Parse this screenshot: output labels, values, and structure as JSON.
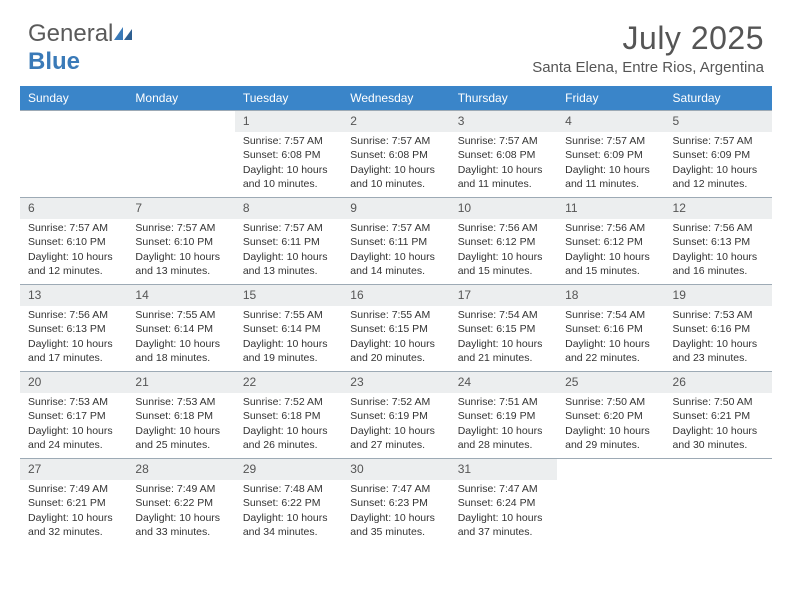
{
  "logo": {
    "part1": "General",
    "part2": "Blue"
  },
  "title": "July 2025",
  "location": "Santa Elena, Entre Rios, Argentina",
  "colors": {
    "header_bg": "#3a85c9",
    "header_text": "#ffffff",
    "daynum_bg": "#eceeef",
    "border": "#9daab5",
    "body_text": "#333333",
    "title_text": "#555555",
    "logo_gray": "#5a5a5a",
    "logo_blue": "#3a7ab8",
    "page_bg": "#ffffff"
  },
  "fonts": {
    "title_size": 32,
    "location_size": 15,
    "dayheader_size": 12,
    "body_size": 10.5
  },
  "day_names": [
    "Sunday",
    "Monday",
    "Tuesday",
    "Wednesday",
    "Thursday",
    "Friday",
    "Saturday"
  ],
  "weeks": [
    [
      null,
      null,
      {
        "n": "1",
        "sr": "7:57 AM",
        "ss": "6:08 PM",
        "dl": "10 hours and 10 minutes."
      },
      {
        "n": "2",
        "sr": "7:57 AM",
        "ss": "6:08 PM",
        "dl": "10 hours and 10 minutes."
      },
      {
        "n": "3",
        "sr": "7:57 AM",
        "ss": "6:08 PM",
        "dl": "10 hours and 11 minutes."
      },
      {
        "n": "4",
        "sr": "7:57 AM",
        "ss": "6:09 PM",
        "dl": "10 hours and 11 minutes."
      },
      {
        "n": "5",
        "sr": "7:57 AM",
        "ss": "6:09 PM",
        "dl": "10 hours and 12 minutes."
      }
    ],
    [
      {
        "n": "6",
        "sr": "7:57 AM",
        "ss": "6:10 PM",
        "dl": "10 hours and 12 minutes."
      },
      {
        "n": "7",
        "sr": "7:57 AM",
        "ss": "6:10 PM",
        "dl": "10 hours and 13 minutes."
      },
      {
        "n": "8",
        "sr": "7:57 AM",
        "ss": "6:11 PM",
        "dl": "10 hours and 13 minutes."
      },
      {
        "n": "9",
        "sr": "7:57 AM",
        "ss": "6:11 PM",
        "dl": "10 hours and 14 minutes."
      },
      {
        "n": "10",
        "sr": "7:56 AM",
        "ss": "6:12 PM",
        "dl": "10 hours and 15 minutes."
      },
      {
        "n": "11",
        "sr": "7:56 AM",
        "ss": "6:12 PM",
        "dl": "10 hours and 15 minutes."
      },
      {
        "n": "12",
        "sr": "7:56 AM",
        "ss": "6:13 PM",
        "dl": "10 hours and 16 minutes."
      }
    ],
    [
      {
        "n": "13",
        "sr": "7:56 AM",
        "ss": "6:13 PM",
        "dl": "10 hours and 17 minutes."
      },
      {
        "n": "14",
        "sr": "7:55 AM",
        "ss": "6:14 PM",
        "dl": "10 hours and 18 minutes."
      },
      {
        "n": "15",
        "sr": "7:55 AM",
        "ss": "6:14 PM",
        "dl": "10 hours and 19 minutes."
      },
      {
        "n": "16",
        "sr": "7:55 AM",
        "ss": "6:15 PM",
        "dl": "10 hours and 20 minutes."
      },
      {
        "n": "17",
        "sr": "7:54 AM",
        "ss": "6:15 PM",
        "dl": "10 hours and 21 minutes."
      },
      {
        "n": "18",
        "sr": "7:54 AM",
        "ss": "6:16 PM",
        "dl": "10 hours and 22 minutes."
      },
      {
        "n": "19",
        "sr": "7:53 AM",
        "ss": "6:16 PM",
        "dl": "10 hours and 23 minutes."
      }
    ],
    [
      {
        "n": "20",
        "sr": "7:53 AM",
        "ss": "6:17 PM",
        "dl": "10 hours and 24 minutes."
      },
      {
        "n": "21",
        "sr": "7:53 AM",
        "ss": "6:18 PM",
        "dl": "10 hours and 25 minutes."
      },
      {
        "n": "22",
        "sr": "7:52 AM",
        "ss": "6:18 PM",
        "dl": "10 hours and 26 minutes."
      },
      {
        "n": "23",
        "sr": "7:52 AM",
        "ss": "6:19 PM",
        "dl": "10 hours and 27 minutes."
      },
      {
        "n": "24",
        "sr": "7:51 AM",
        "ss": "6:19 PM",
        "dl": "10 hours and 28 minutes."
      },
      {
        "n": "25",
        "sr": "7:50 AM",
        "ss": "6:20 PM",
        "dl": "10 hours and 29 minutes."
      },
      {
        "n": "26",
        "sr": "7:50 AM",
        "ss": "6:21 PM",
        "dl": "10 hours and 30 minutes."
      }
    ],
    [
      {
        "n": "27",
        "sr": "7:49 AM",
        "ss": "6:21 PM",
        "dl": "10 hours and 32 minutes."
      },
      {
        "n": "28",
        "sr": "7:49 AM",
        "ss": "6:22 PM",
        "dl": "10 hours and 33 minutes."
      },
      {
        "n": "29",
        "sr": "7:48 AM",
        "ss": "6:22 PM",
        "dl": "10 hours and 34 minutes."
      },
      {
        "n": "30",
        "sr": "7:47 AM",
        "ss": "6:23 PM",
        "dl": "10 hours and 35 minutes."
      },
      {
        "n": "31",
        "sr": "7:47 AM",
        "ss": "6:24 PM",
        "dl": "10 hours and 37 minutes."
      },
      null,
      null
    ]
  ],
  "labels": {
    "sunrise": "Sunrise:",
    "sunset": "Sunset:",
    "daylight": "Daylight:"
  }
}
